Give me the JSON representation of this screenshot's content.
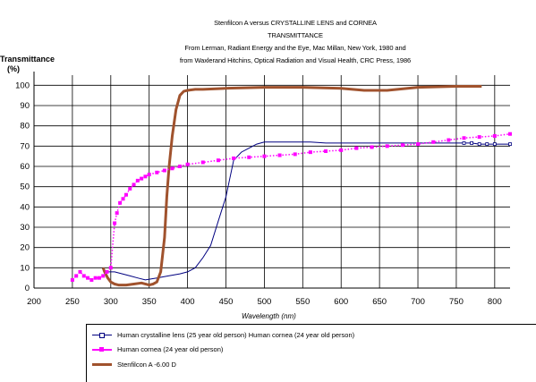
{
  "title_lines": [
    "Stenfilcon A versus CRYSTALLINE LENS and CORNEA",
    "TRANSMITTANCE",
    "From Lerman, Radiant Energy and the Eye, Mac Millan, New York, 1980 and",
    "from Waxlerand Hitchins, Optical Radiation and Visual Health, CRC Press, 1986"
  ],
  "chart_data": {
    "type": "line",
    "title": "Stenfilcon A versus CRYSTALLINE LENS and CORNEA TRANSMITTANCE",
    "ylabel": "Transmittance (%)",
    "xlabel": "Wavelength (nm)",
    "ylabel_lines": [
      "Transmittance",
      "(%)"
    ],
    "xlim": [
      200,
      820
    ],
    "ylim": [
      0,
      105
    ],
    "xticks": [
      200,
      250,
      300,
      350,
      400,
      450,
      500,
      550,
      600,
      650,
      700,
      750,
      800
    ],
    "yticks": [
      0,
      10,
      20,
      30,
      40,
      50,
      60,
      70,
      80,
      90,
      100
    ],
    "grid": true,
    "legend_position": "bottom",
    "series": [
      {
        "name": "Human crystalline lens (25 year old person) Human cornea (24 year old person)",
        "color": "#000080",
        "style": "thin-line",
        "x": [
          295,
          305,
          315,
          325,
          335,
          345,
          360,
          375,
          390,
          400,
          410,
          420,
          430,
          440,
          450,
          460,
          470,
          480,
          490,
          500,
          520,
          540,
          560,
          580,
          600,
          620,
          640,
          660,
          680,
          700,
          720,
          740,
          760,
          770,
          780,
          790,
          800,
          820
        ],
        "y": [
          8,
          8,
          7,
          6,
          5,
          4,
          5,
          6,
          7,
          8,
          10,
          15,
          21,
          33,
          45,
          63,
          67,
          69,
          71,
          72,
          72,
          72,
          72,
          71.5,
          71.5,
          71.5,
          71.5,
          71.5,
          71.5,
          71.5,
          71.5,
          71.5,
          71.5,
          71.5,
          71,
          71,
          71,
          71
        ]
      },
      {
        "name": "Human cornea (24 year old person)",
        "color": "#ff00ff",
        "style": "markers",
        "x": [
          250,
          255,
          260,
          265,
          270,
          275,
          280,
          285,
          290,
          295,
          300,
          305,
          308,
          312,
          316,
          320,
          325,
          330,
          335,
          340,
          345,
          350,
          360,
          370,
          380,
          390,
          400,
          420,
          440,
          460,
          480,
          500,
          520,
          540,
          560,
          580,
          600,
          620,
          640,
          660,
          680,
          700,
          720,
          740,
          760,
          780,
          800,
          820
        ],
        "y": [
          4,
          6,
          8,
          6,
          5,
          4,
          5,
          5,
          6,
          8,
          10,
          32,
          37,
          42,
          44,
          46,
          49,
          51,
          53,
          54,
          55,
          56,
          57,
          58,
          59,
          60,
          61,
          62,
          63,
          64,
          64.5,
          65,
          65.5,
          66,
          67,
          67.5,
          68,
          69,
          69.5,
          70,
          70.5,
          71,
          72,
          73,
          74,
          74.5,
          75,
          76
        ]
      },
      {
        "name": "Stenfilcon A -6.00 D",
        "color": "#a0522d",
        "style": "thick-line",
        "x": [
          290,
          292,
          296,
          300,
          305,
          310,
          320,
          330,
          340,
          350,
          355,
          360,
          365,
          370,
          373,
          376,
          380,
          385,
          390,
          395,
          400,
          410,
          420,
          450,
          500,
          550,
          600,
          630,
          660,
          700,
          750,
          783
        ],
        "y": [
          10,
          8,
          5,
          3,
          2,
          1.5,
          1.5,
          2,
          2.5,
          1.5,
          2,
          3,
          8,
          25,
          45,
          60,
          75,
          88,
          95,
          97,
          97.5,
          98,
          98,
          98.5,
          99,
          99,
          98.5,
          97.5,
          97.5,
          99,
          99.5,
          99.5
        ]
      }
    ]
  }
}
